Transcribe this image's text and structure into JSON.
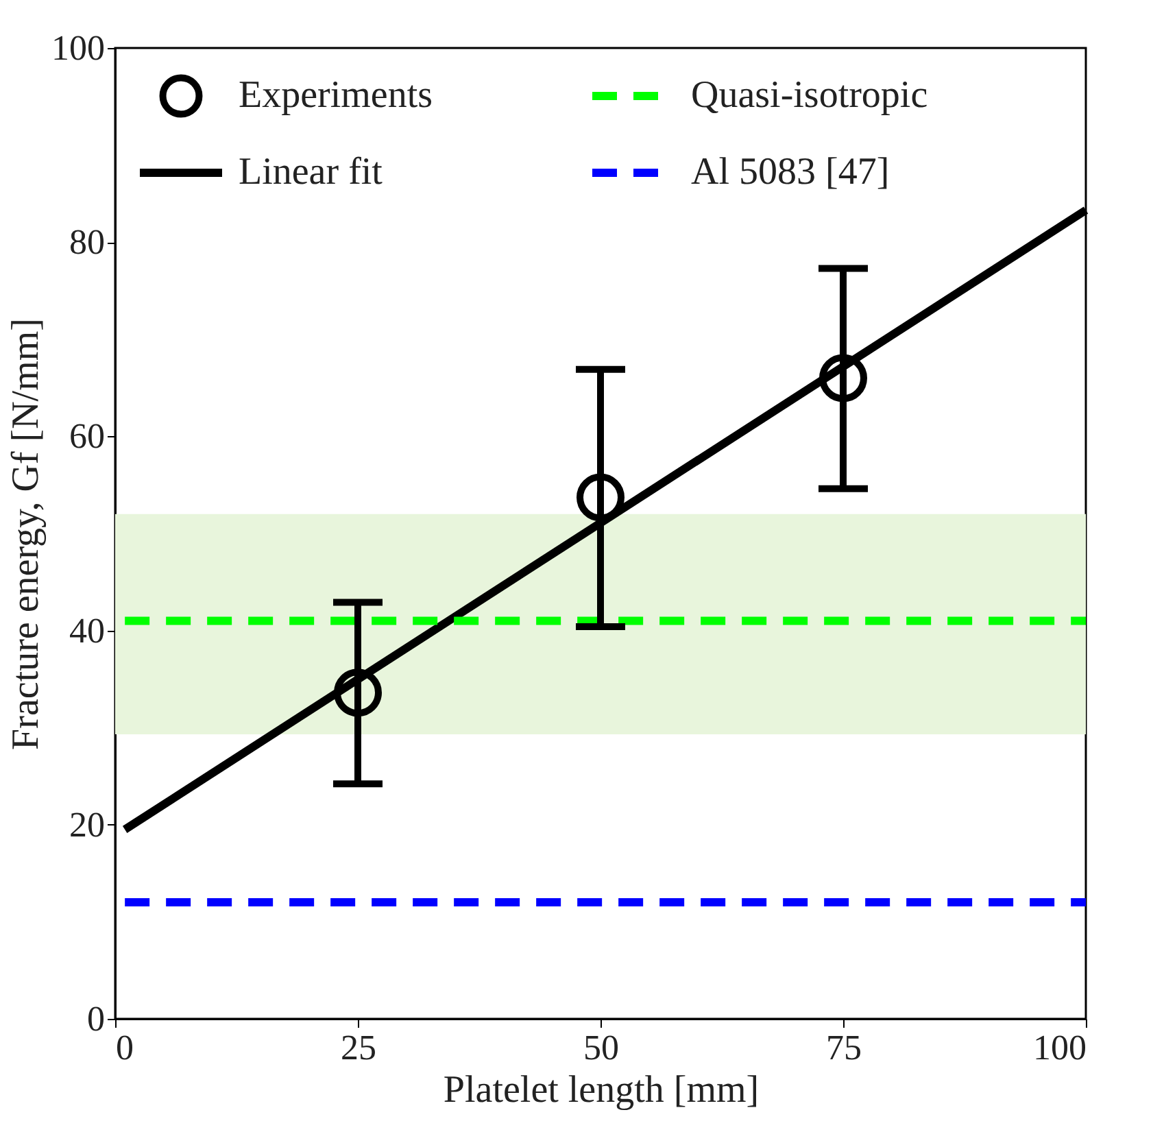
{
  "chart_data": {
    "type": "scatter",
    "xlabel": "Platelet length [mm]",
    "ylabel": "Fracture energy, Gf [N/mm]",
    "xlim": [
      0,
      100
    ],
    "ylim": [
      0,
      100
    ],
    "xticks": [
      0,
      25,
      50,
      75,
      100
    ],
    "yticks": [
      0,
      20,
      40,
      60,
      80,
      100
    ],
    "grid": false,
    "legend": "top left",
    "bands": [
      {
        "axis": "y",
        "from": 29.3,
        "to": 52,
        "color": "#e8f5dc"
      }
    ],
    "series": [
      {
        "name": "Experiments",
        "color": "#000000",
        "marker": "circle",
        "x": [
          25,
          50,
          75
        ],
        "values": [
          33.6,
          53.7,
          66.0
        ],
        "errors": [
          [
            24.2,
            42.9
          ],
          [
            40.4,
            66.9
          ],
          [
            54.6,
            77.3
          ]
        ]
      },
      {
        "name": "Linear fit",
        "type": "line",
        "color": "#000000",
        "line_style": "solid",
        "x": [
          1,
          100
        ],
        "values": [
          19.5,
          83.3
        ]
      },
      {
        "name": "Quasi-isotropic",
        "type": "line",
        "color": "#00ff00",
        "line_style": "dashed",
        "x": [
          1,
          100
        ],
        "values": [
          41,
          41
        ]
      },
      {
        "name": "Al 5083 [47]",
        "type": "line",
        "color": "#0000ff",
        "line_style": "dashed",
        "x": [
          1,
          100
        ],
        "values": [
          12,
          12
        ]
      }
    ]
  }
}
